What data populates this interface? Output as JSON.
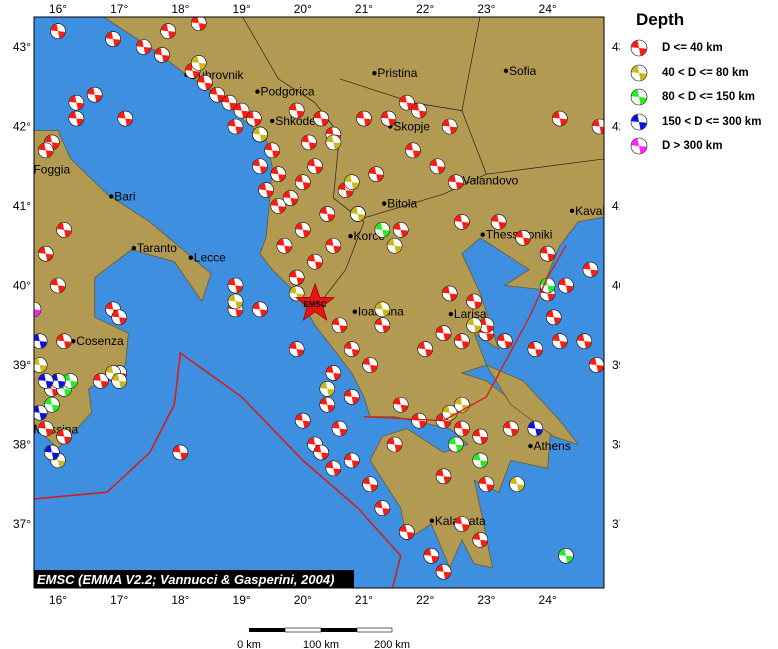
{
  "map": {
    "credit": "EMSC (EMMA V2.2; Vannucci & Gasperini, 2004)",
    "lon_ticks": [
      16,
      17,
      18,
      19,
      20,
      21,
      22,
      23,
      24
    ],
    "lat_ticks": [
      43,
      42,
      41,
      40,
      39,
      38,
      37
    ],
    "degree_suffix": "°",
    "colors": {
      "sea": "#3f8fe0",
      "land": "#b39a52",
      "trench": "#d0201e",
      "border": "#222222"
    },
    "epicenter_label": "EMSC",
    "epicenter": {
      "lon": 20.2,
      "lat": 39.77
    },
    "cities": [
      {
        "name": "Dubrovnik",
        "lon": 18.1,
        "lat": 42.65
      },
      {
        "name": "Podgorica",
        "lon": 19.26,
        "lat": 42.44
      },
      {
        "name": "Pristina",
        "lon": 21.17,
        "lat": 42.67
      },
      {
        "name": "Sofia",
        "lon": 23.32,
        "lat": 42.7
      },
      {
        "name": "Shkoder",
        "lon": 19.5,
        "lat": 42.07
      },
      {
        "name": "Skopje",
        "lon": 21.43,
        "lat": 42.0
      },
      {
        "name": "Foggia",
        "lon": 15.55,
        "lat": 41.46
      },
      {
        "name": "Bari",
        "lon": 16.87,
        "lat": 41.12
      },
      {
        "name": "Taranto",
        "lon": 17.24,
        "lat": 40.47
      },
      {
        "name": "Lecce",
        "lon": 18.17,
        "lat": 40.35
      },
      {
        "name": "Bitola",
        "lon": 21.33,
        "lat": 41.03
      },
      {
        "name": "Korce",
        "lon": 20.78,
        "lat": 40.62
      },
      {
        "name": "Valandovo",
        "lon": 22.56,
        "lat": 41.32
      },
      {
        "name": "Thessaloniki",
        "lon": 22.94,
        "lat": 40.64
      },
      {
        "name": "Kavala",
        "lon": 24.4,
        "lat": 40.94
      },
      {
        "name": "Ioannina",
        "lon": 20.85,
        "lat": 39.67
      },
      {
        "name": "Larisa",
        "lon": 22.42,
        "lat": 39.64
      },
      {
        "name": "Cosenza",
        "lon": 16.25,
        "lat": 39.3
      },
      {
        "name": "Messina",
        "lon": 15.55,
        "lat": 38.19
      },
      {
        "name": "Athens",
        "lon": 23.72,
        "lat": 37.98
      },
      {
        "name": "Kalamata",
        "lon": 22.11,
        "lat": 37.04
      }
    ],
    "events": [
      [
        16.0,
        43.2,
        1
      ],
      [
        16.9,
        43.1,
        1
      ],
      [
        17.4,
        43.0,
        1
      ],
      [
        17.7,
        42.9,
        1
      ],
      [
        17.8,
        43.2,
        1
      ],
      [
        18.3,
        43.3,
        1
      ],
      [
        18.2,
        42.7,
        1
      ],
      [
        18.4,
        42.55,
        1
      ],
      [
        18.6,
        42.4,
        1
      ],
      [
        18.8,
        42.3,
        1
      ],
      [
        19.0,
        42.2,
        1
      ],
      [
        19.2,
        42.1,
        1
      ],
      [
        18.9,
        42.0,
        1
      ],
      [
        19.3,
        41.9,
        1
      ],
      [
        19.5,
        41.7,
        1
      ],
      [
        19.3,
        41.5,
        1
      ],
      [
        19.6,
        41.4,
        1
      ],
      [
        19.4,
        41.2,
        1
      ],
      [
        19.6,
        41.0,
        1
      ],
      [
        19.8,
        41.1,
        1
      ],
      [
        20.0,
        41.3,
        1
      ],
      [
        20.2,
        41.5,
        1
      ],
      [
        20.1,
        41.8,
        1
      ],
      [
        20.5,
        41.9,
        1
      ],
      [
        20.3,
        42.1,
        1
      ],
      [
        19.9,
        42.2,
        1
      ],
      [
        20.4,
        40.9,
        1
      ],
      [
        20.0,
        40.7,
        1
      ],
      [
        19.7,
        40.5,
        1
      ],
      [
        20.2,
        40.3,
        1
      ],
      [
        19.9,
        40.1,
        1
      ],
      [
        20.5,
        40.5,
        1
      ],
      [
        20.9,
        40.9,
        1
      ],
      [
        20.7,
        41.2,
        1
      ],
      [
        21.2,
        41.4,
        1
      ],
      [
        21.0,
        42.1,
        1
      ],
      [
        21.4,
        42.1,
        1
      ],
      [
        21.7,
        42.3,
        1
      ],
      [
        22.2,
        41.5,
        1
      ],
      [
        22.5,
        41.3,
        1
      ],
      [
        22.6,
        40.8,
        1
      ],
      [
        23.2,
        40.8,
        1
      ],
      [
        23.6,
        40.6,
        1
      ],
      [
        24.0,
        40.4,
        1
      ],
      [
        24.3,
        40.0,
        1
      ],
      [
        24.7,
        40.2,
        1
      ],
      [
        24.0,
        39.9,
        1
      ],
      [
        23.8,
        39.2,
        1
      ],
      [
        24.2,
        39.3,
        1
      ],
      [
        24.6,
        39.3,
        1
      ],
      [
        24.8,
        39.0,
        1
      ],
      [
        23.3,
        39.3,
        1
      ],
      [
        23.0,
        39.4,
        1
      ],
      [
        22.6,
        39.3,
        1
      ],
      [
        22.3,
        39.4,
        1
      ],
      [
        22.8,
        39.8,
        1
      ],
      [
        23.0,
        39.5,
        1
      ],
      [
        22.4,
        39.9,
        1
      ],
      [
        22.0,
        39.2,
        1
      ],
      [
        21.3,
        39.5,
        1
      ],
      [
        21.1,
        39.0,
        1
      ],
      [
        20.8,
        39.2,
        1
      ],
      [
        20.6,
        39.5,
        1
      ],
      [
        20.5,
        38.9,
        1
      ],
      [
        20.4,
        38.5,
        1
      ],
      [
        20.6,
        38.2,
        1
      ],
      [
        20.2,
        38.0,
        1
      ],
      [
        20.5,
        37.7,
        1
      ],
      [
        20.8,
        37.8,
        1
      ],
      [
        21.1,
        37.5,
        1
      ],
      [
        21.3,
        37.2,
        1
      ],
      [
        21.7,
        36.9,
        1
      ],
      [
        22.1,
        36.6,
        1
      ],
      [
        22.3,
        36.4,
        1
      ],
      [
        22.6,
        37.0,
        1
      ],
      [
        22.3,
        37.6,
        1
      ],
      [
        21.5,
        38.0,
        1
      ],
      [
        21.9,
        38.3,
        1
      ],
      [
        22.3,
        38.3,
        1
      ],
      [
        22.6,
        38.2,
        1
      ],
      [
        22.9,
        38.1,
        1
      ],
      [
        23.4,
        38.2,
        1
      ],
      [
        23.0,
        37.5,
        1
      ],
      [
        22.9,
        36.8,
        1
      ],
      [
        21.6,
        38.5,
        1
      ],
      [
        20.8,
        38.6,
        1
      ],
      [
        20.0,
        38.3,
        1
      ],
      [
        20.3,
        37.9,
        1
      ],
      [
        16.1,
        40.7,
        1
      ],
      [
        15.8,
        40.4,
        1
      ],
      [
        16.0,
        40.0,
        1
      ],
      [
        16.9,
        39.7,
        1
      ],
      [
        17.0,
        39.6,
        1
      ],
      [
        16.1,
        39.3,
        1
      ],
      [
        16.7,
        38.8,
        1
      ],
      [
        17.0,
        38.9,
        1
      ],
      [
        15.9,
        38.7,
        1
      ],
      [
        16.1,
        38.1,
        1
      ],
      [
        15.8,
        38.2,
        1
      ],
      [
        18.0,
        37.9,
        1
      ],
      [
        16.3,
        42.1,
        1
      ],
      [
        17.1,
        42.1,
        1
      ],
      [
        16.6,
        42.4,
        1
      ],
      [
        16.3,
        42.3,
        1
      ],
      [
        15.9,
        41.8,
        1
      ],
      [
        15.8,
        41.7,
        1
      ],
      [
        18.9,
        40.0,
        1
      ],
      [
        18.9,
        39.7,
        1
      ],
      [
        19.3,
        39.7,
        1
      ],
      [
        19.9,
        39.2,
        1
      ],
      [
        24.2,
        42.1,
        1
      ],
      [
        24.85,
        42.0,
        1
      ],
      [
        21.9,
        42.2,
        1
      ],
      [
        22.4,
        42.0,
        1
      ],
      [
        21.8,
        41.7,
        1
      ],
      [
        21.6,
        40.7,
        1
      ],
      [
        24.1,
        39.6,
        1
      ],
      [
        18.3,
        42.8,
        2
      ],
      [
        19.3,
        41.9,
        2
      ],
      [
        20.5,
        41.8,
        2
      ],
      [
        20.8,
        41.3,
        2
      ],
      [
        20.9,
        40.9,
        2
      ],
      [
        21.5,
        40.5,
        2
      ],
      [
        19.9,
        39.9,
        2
      ],
      [
        16.9,
        38.9,
        2
      ],
      [
        17.0,
        38.8,
        2
      ],
      [
        22.4,
        38.4,
        2
      ],
      [
        22.6,
        38.5,
        2
      ],
      [
        23.5,
        37.5,
        2
      ],
      [
        22.8,
        39.5,
        2
      ],
      [
        20.4,
        38.7,
        2
      ],
      [
        16.0,
        37.8,
        2
      ],
      [
        15.7,
        39.0,
        2
      ],
      [
        21.3,
        39.7,
        2
      ],
      [
        18.9,
        39.8,
        2
      ],
      [
        21.3,
        40.7,
        3
      ],
      [
        24.0,
        40.0,
        3
      ],
      [
        22.5,
        38.0,
        3
      ],
      [
        22.9,
        37.8,
        3
      ],
      [
        16.1,
        38.7,
        3
      ],
      [
        15.9,
        38.5,
        3
      ],
      [
        24.3,
        36.6,
        3
      ],
      [
        16.2,
        38.8,
        3
      ],
      [
        15.7,
        39.3,
        4
      ],
      [
        16.0,
        38.8,
        4
      ],
      [
        15.8,
        38.8,
        4
      ],
      [
        15.7,
        38.4,
        4
      ],
      [
        23.8,
        38.2,
        4
      ],
      [
        15.9,
        37.9,
        4
      ],
      [
        15.6,
        39.7,
        5
      ]
    ]
  },
  "legend": {
    "title": "Depth",
    "items": [
      {
        "label": "D <= 40 km",
        "color": "#ff1a10"
      },
      {
        "label": "40 < D <= 80 km",
        "color": "#c8b818"
      },
      {
        "label": "80 < D <= 150 km",
        "color": "#22ee22"
      },
      {
        "label": "150 < D <= 300 km",
        "color": "#1010dd"
      },
      {
        "label": "D > 300 km",
        "color": "#ff22ff"
      }
    ]
  },
  "scale_bar": {
    "labels": [
      "0 km",
      "100 km",
      "200 km"
    ]
  }
}
